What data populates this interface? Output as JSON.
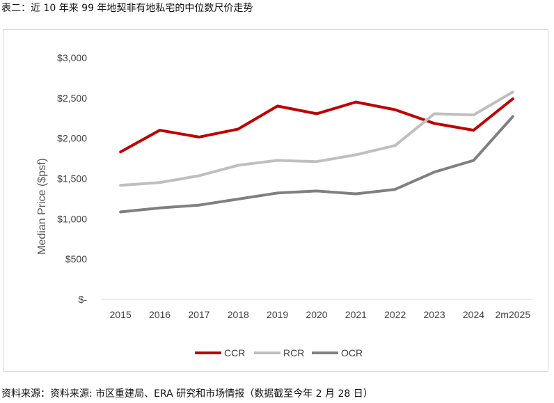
{
  "caption": "表二：近 10 年来 99 年地契非有地私宅的中位数尺价走势",
  "source": "资料来源：资料来源: 市区重建局、ERA 研究和市场情报（数据截至今年 2 月 28 日）",
  "chart_data": {
    "type": "line",
    "title": "",
    "xlabel": "",
    "ylabel": "Median Price ($psf)",
    "ylim": [
      0,
      3000
    ],
    "yticks": [
      0,
      500,
      1000,
      1500,
      2000,
      2500,
      3000
    ],
    "ytick_labels": [
      "$-",
      "$500",
      "$1,000",
      "$1,500",
      "$2,000",
      "$2,500",
      "$3,000"
    ],
    "categories": [
      "2015",
      "2016",
      "2017",
      "2018",
      "2019",
      "2020",
      "2021",
      "2022",
      "2023",
      "2024",
      "2m2025"
    ],
    "grid": false,
    "legend_position": "bottom-center",
    "series": [
      {
        "name": "CCR",
        "color": "#c00000",
        "values": [
          1830,
          2100,
          2015,
          2115,
          2400,
          2305,
          2450,
          2355,
          2185,
          2100,
          2490
        ]
      },
      {
        "name": "RCR",
        "color": "#bfbfbf",
        "values": [
          1415,
          1450,
          1535,
          1665,
          1725,
          1710,
          1795,
          1910,
          2305,
          2290,
          2575
        ]
      },
      {
        "name": "OCR",
        "color": "#808080",
        "values": [
          1085,
          1135,
          1170,
          1245,
          1320,
          1345,
          1310,
          1365,
          1580,
          1725,
          2270
        ]
      }
    ]
  }
}
